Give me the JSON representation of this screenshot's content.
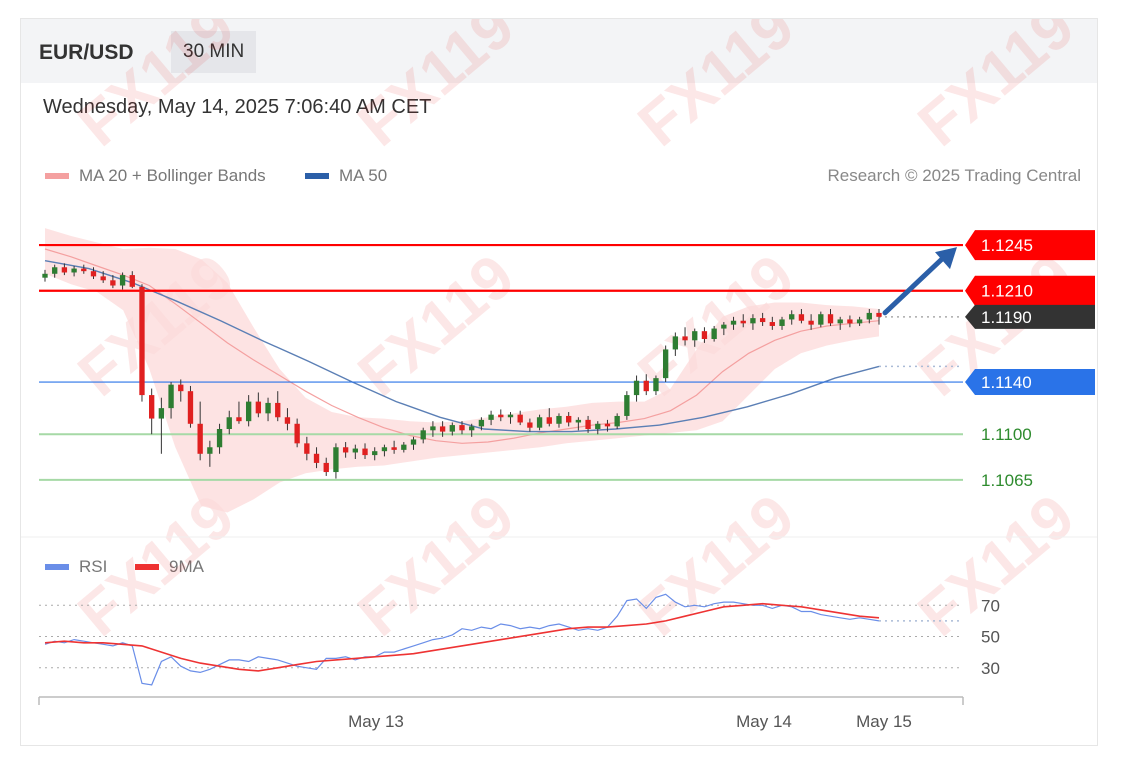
{
  "header": {
    "symbol": "EUR/USD",
    "timeframe": "30 MIN"
  },
  "datetime": "Wednesday, May 14, 2025 7:06:40 AM CET",
  "credit": "Research © 2025 Trading Central",
  "watermark": "FX119",
  "colors": {
    "resistance": "#ff0000",
    "support": "#a6d9a6",
    "pivot": "#2a73e8",
    "last": "#333333",
    "ma20": "#f4a0a0",
    "bands": "#fcd9d9",
    "ma50": "#5b7fb5",
    "rsi": "#6a8ee8",
    "rsi9ma": "#ee3333",
    "up": "#2e7d32",
    "down": "#e02020",
    "arrow": "#2b5fa8"
  },
  "legend": {
    "main": [
      {
        "label": "MA 20 + Bollinger Bands",
        "color": "#f4a0a0"
      },
      {
        "label": "MA 50",
        "color": "#2b5fa8"
      }
    ],
    "rsi": [
      {
        "label": "RSI",
        "color": "#6a8ee8"
      },
      {
        "label": "9MA",
        "color": "#ee3333"
      }
    ]
  },
  "chart_data": [
    {
      "type": "candlestick",
      "ylim": [
        1.1035,
        1.1265
      ],
      "xlabels": [
        "May 13",
        "May 14",
        "May 15"
      ],
      "levels": [
        {
          "value": 1.1245,
          "label": "1.1245",
          "kind": "resistance"
        },
        {
          "value": 1.121,
          "label": "1.1210",
          "kind": "resistance"
        },
        {
          "value": 1.119,
          "label": "1.1190",
          "kind": "last"
        },
        {
          "value": 1.114,
          "label": "1.1140",
          "kind": "pivot"
        },
        {
          "value": 1.11,
          "label": "1.1100",
          "kind": "support"
        },
        {
          "value": 1.1065,
          "label": "1.1065",
          "kind": "support"
        }
      ],
      "candles": [
        [
          1.122,
          1.1226,
          1.1217,
          1.1223
        ],
        [
          1.1223,
          1.123,
          1.122,
          1.1228
        ],
        [
          1.1228,
          1.1231,
          1.1222,
          1.1224
        ],
        [
          1.1224,
          1.1229,
          1.1221,
          1.1227
        ],
        [
          1.1227,
          1.123,
          1.1223,
          1.1225
        ],
        [
          1.1225,
          1.1228,
          1.1219,
          1.1221
        ],
        [
          1.1221,
          1.1225,
          1.1216,
          1.1218
        ],
        [
          1.1218,
          1.1222,
          1.1212,
          1.1214
        ],
        [
          1.1214,
          1.1224,
          1.1211,
          1.1222
        ],
        [
          1.1222,
          1.1225,
          1.1212,
          1.1213
        ],
        [
          1.1213,
          1.1215,
          1.1125,
          1.113
        ],
        [
          1.113,
          1.1135,
          1.11,
          1.1112
        ],
        [
          1.1112,
          1.1128,
          1.1085,
          1.112
        ],
        [
          1.112,
          1.114,
          1.1112,
          1.1138
        ],
        [
          1.1138,
          1.1142,
          1.1125,
          1.1133
        ],
        [
          1.1133,
          1.1137,
          1.1105,
          1.1108
        ],
        [
          1.1108,
          1.1125,
          1.108,
          1.1085
        ],
        [
          1.1085,
          1.1095,
          1.1075,
          1.109
        ],
        [
          1.109,
          1.1108,
          1.1085,
          1.1104
        ],
        [
          1.1104,
          1.1118,
          1.11,
          1.1113
        ],
        [
          1.1113,
          1.1125,
          1.1108,
          1.111
        ],
        [
          1.111,
          1.113,
          1.1106,
          1.1125
        ],
        [
          1.1125,
          1.1132,
          1.1113,
          1.1116
        ],
        [
          1.1116,
          1.1128,
          1.111,
          1.1124
        ],
        [
          1.1124,
          1.1133,
          1.111,
          1.1113
        ],
        [
          1.1113,
          1.112,
          1.1103,
          1.1108
        ],
        [
          1.1108,
          1.1112,
          1.109,
          1.1093
        ],
        [
          1.1093,
          1.1098,
          1.108,
          1.1085
        ],
        [
          1.1085,
          1.109,
          1.1074,
          1.1078
        ],
        [
          1.1078,
          1.1082,
          1.1068,
          1.1071
        ],
        [
          1.1071,
          1.1093,
          1.1066,
          1.109
        ],
        [
          1.109,
          1.1094,
          1.1082,
          1.1086
        ],
        [
          1.1086,
          1.1092,
          1.1081,
          1.1089
        ],
        [
          1.1089,
          1.1093,
          1.1081,
          1.1084
        ],
        [
          1.1084,
          1.109,
          1.108,
          1.1087
        ],
        [
          1.1087,
          1.1092,
          1.1083,
          1.109
        ],
        [
          1.109,
          1.1095,
          1.1085,
          1.1088
        ],
        [
          1.1088,
          1.1094,
          1.1086,
          1.1092
        ],
        [
          1.1092,
          1.1098,
          1.1088,
          1.1096
        ],
        [
          1.1096,
          1.1105,
          1.1093,
          1.1103
        ],
        [
          1.1103,
          1.111,
          1.1098,
          1.1106
        ],
        [
          1.1106,
          1.111,
          1.1098,
          1.1102
        ],
        [
          1.1102,
          1.1109,
          1.1099,
          1.1107
        ],
        [
          1.1107,
          1.111,
          1.11,
          1.1103
        ],
        [
          1.1103,
          1.1108,
          1.1098,
          1.1106
        ],
        [
          1.1106,
          1.1113,
          1.1103,
          1.1111
        ],
        [
          1.1111,
          1.1118,
          1.1107,
          1.1115
        ],
        [
          1.1115,
          1.1119,
          1.111,
          1.1113
        ],
        [
          1.1113,
          1.1117,
          1.1108,
          1.1115
        ],
        [
          1.1115,
          1.1118,
          1.1107,
          1.1109
        ],
        [
          1.1109,
          1.1112,
          1.1102,
          1.1105
        ],
        [
          1.1105,
          1.1115,
          1.1103,
          1.1113
        ],
        [
          1.1113,
          1.112,
          1.1106,
          1.1108
        ],
        [
          1.1108,
          1.1116,
          1.1105,
          1.1114
        ],
        [
          1.1114,
          1.1117,
          1.1106,
          1.1109
        ],
        [
          1.1109,
          1.1113,
          1.1103,
          1.1111
        ],
        [
          1.1111,
          1.1114,
          1.1101,
          1.1104
        ],
        [
          1.1104,
          1.111,
          1.11,
          1.1108
        ],
        [
          1.1108,
          1.1111,
          1.1102,
          1.1106
        ],
        [
          1.1106,
          1.1116,
          1.1104,
          1.1114
        ],
        [
          1.1114,
          1.1133,
          1.1111,
          1.113
        ],
        [
          1.113,
          1.1145,
          1.1125,
          1.1141
        ],
        [
          1.1141,
          1.1146,
          1.113,
          1.1133
        ],
        [
          1.1133,
          1.1145,
          1.113,
          1.1143
        ],
        [
          1.1143,
          1.1168,
          1.114,
          1.1165
        ],
        [
          1.1165,
          1.1178,
          1.116,
          1.1175
        ],
        [
          1.1175,
          1.1182,
          1.1168,
          1.1172
        ],
        [
          1.1172,
          1.1181,
          1.1167,
          1.1179
        ],
        [
          1.1179,
          1.1182,
          1.117,
          1.1173
        ],
        [
          1.1173,
          1.1183,
          1.1171,
          1.1181
        ],
        [
          1.1181,
          1.1186,
          1.1176,
          1.1184
        ],
        [
          1.1184,
          1.119,
          1.118,
          1.1187
        ],
        [
          1.1187,
          1.1192,
          1.1182,
          1.1185
        ],
        [
          1.1185,
          1.1192,
          1.118,
          1.1189
        ],
        [
          1.1189,
          1.1193,
          1.1183,
          1.1186
        ],
        [
          1.1186,
          1.119,
          1.118,
          1.1183
        ],
        [
          1.1183,
          1.119,
          1.118,
          1.1188
        ],
        [
          1.1188,
          1.1195,
          1.1184,
          1.1192
        ],
        [
          1.1192,
          1.1196,
          1.1185,
          1.1187
        ],
        [
          1.1187,
          1.1192,
          1.118,
          1.1184
        ],
        [
          1.1184,
          1.1194,
          1.1182,
          1.1192
        ],
        [
          1.1192,
          1.1196,
          1.1183,
          1.1185
        ],
        [
          1.1185,
          1.119,
          1.118,
          1.1188
        ],
        [
          1.1188,
          1.1191,
          1.1182,
          1.1185
        ],
        [
          1.1185,
          1.119,
          1.1183,
          1.1188
        ],
        [
          1.1188,
          1.1196,
          1.1185,
          1.1193
        ],
        [
          1.1193,
          1.1196,
          1.1184,
          1.119
        ]
      ],
      "ma20": [
        1.1242,
        1.1236,
        1.1229,
        1.1222,
        1.1214,
        1.12,
        1.1185,
        1.117,
        1.1157,
        1.1145,
        1.1133,
        1.1122,
        1.1113,
        1.1105,
        1.1099,
        1.1095,
        1.1093,
        1.1094,
        1.1097,
        1.1101,
        1.1104,
        1.1107,
        1.1109,
        1.1112,
        1.1118,
        1.113,
        1.1148,
        1.1162,
        1.1172,
        1.1179,
        1.1183,
        1.1185,
        1.1187
      ],
      "upper": [
        1.1258,
        1.1252,
        1.1247,
        1.1242,
        1.1243,
        1.1242,
        1.1234,
        1.1216,
        1.1182,
        1.115,
        1.1128,
        1.1117,
        1.1113,
        1.1112,
        1.111,
        1.1109,
        1.111,
        1.1113,
        1.1116,
        1.1119,
        1.1121,
        1.1124,
        1.1125,
        1.1125,
        1.1135,
        1.1165,
        1.119,
        1.1198,
        1.1201,
        1.1201,
        1.1199,
        1.1198,
        1.1196
      ],
      "lower": [
        1.1223,
        1.1215,
        1.1209,
        1.1195,
        1.115,
        1.109,
        1.1045,
        1.104,
        1.105,
        1.1063,
        1.107,
        1.1073,
        1.1075,
        1.1076,
        1.1079,
        1.1082,
        1.1084,
        1.1086,
        1.1088,
        1.109,
        1.1093,
        1.1095,
        1.1097,
        1.1099,
        1.1101,
        1.1103,
        1.111,
        1.113,
        1.115,
        1.1162,
        1.1168,
        1.1172,
        1.1175
      ],
      "ma50": [
        1.1233,
        1.1227,
        1.1216,
        1.1202,
        1.1187,
        1.1171,
        1.1156,
        1.114,
        1.1125,
        1.1113,
        1.1104,
        1.1102,
        1.1102,
        1.1104,
        1.1107,
        1.1113,
        1.1121,
        1.1131,
        1.1143,
        1.1152
      ]
    },
    {
      "type": "line",
      "ylim": [
        10,
        90
      ],
      "yticks": [
        70,
        50,
        30
      ],
      "series": [
        {
          "name": "RSI",
          "values": [
            45,
            47,
            46,
            48,
            47,
            46,
            45,
            44,
            46,
            44,
            20,
            19,
            34,
            37,
            31,
            28,
            27,
            29,
            32,
            35,
            35,
            34,
            37,
            36,
            35,
            33,
            31,
            30,
            29,
            36,
            36,
            37,
            35,
            37,
            37,
            40,
            40,
            42,
            44,
            46,
            48,
            49,
            51,
            55,
            54,
            56,
            55,
            58,
            57,
            55,
            56,
            55,
            57,
            58,
            56,
            54,
            55,
            54,
            56,
            63,
            73,
            74,
            68,
            75,
            77,
            72,
            69,
            70,
            69,
            71,
            72,
            72,
            71,
            70,
            70,
            68,
            70,
            69,
            66,
            66,
            64,
            63,
            62,
            61,
            62,
            61,
            60
          ]
        },
        {
          "name": "9MA",
          "values": [
            46,
            47,
            46,
            46,
            45,
            44,
            40,
            36,
            33,
            31,
            29,
            28,
            30,
            32,
            34,
            35,
            36,
            37,
            38,
            39,
            41,
            43,
            45,
            47,
            49,
            51,
            53,
            55,
            56,
            56,
            57,
            58,
            60,
            63,
            66,
            69,
            70,
            71,
            70,
            69,
            67,
            65,
            63,
            62
          ]
        }
      ]
    }
  ]
}
